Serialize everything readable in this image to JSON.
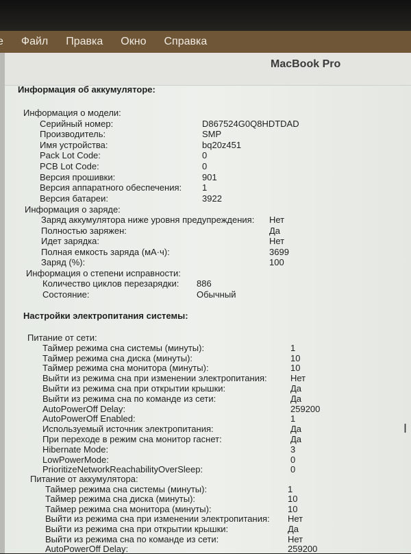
{
  "menubar": {
    "items": [
      "е",
      "Файл",
      "Правка",
      "Окно",
      "Справка"
    ]
  },
  "window": {
    "title": "MacBook Pro"
  },
  "battery": {
    "title": "Информация об аккумуляторе:",
    "model": {
      "title": "Информация о модели:",
      "rows": [
        {
          "label": "Серийный номер:",
          "value": "D867524G0Q8HDTDAD"
        },
        {
          "label": "Производитель:",
          "value": "SMP"
        },
        {
          "label": "Имя устройства:",
          "value": "bq20z451"
        },
        {
          "label": "Pack Lot Code:",
          "value": "0"
        },
        {
          "label": "PCB Lot Code:",
          "value": "0"
        },
        {
          "label": "Версия прошивки:",
          "value": "901"
        },
        {
          "label": "Версия аппаратного обеспечения:",
          "value": "1"
        },
        {
          "label": "Версия батареи:",
          "value": "3922"
        }
      ]
    },
    "charge": {
      "title": "Информация о заряде:",
      "rows": [
        {
          "label": "Заряд аккумулятора ниже уровня предупреждения:",
          "value": "Нет"
        },
        {
          "label": "Полностью заряжен:",
          "value": "Да"
        },
        {
          "label": "Идет зарядка:",
          "value": "Нет"
        },
        {
          "label": "Полная емкость заряда (мА·ч):",
          "value": "3699"
        },
        {
          "label": "Заряд (%):",
          "value": "100"
        }
      ]
    },
    "health": {
      "title": "Информация о степени исправности:",
      "rows": [
        {
          "label": "Количество циклов перезарядки:",
          "value": "886"
        },
        {
          "label": "Состояние:",
          "value": "Обычный"
        }
      ]
    }
  },
  "power": {
    "title": "Настройки электропитания системы:",
    "ac": {
      "title": "Питание от сети:",
      "rows": [
        {
          "label": "Таймер режима сна системы (минуты):",
          "value": "1"
        },
        {
          "label": "Таймер режима сна диска (минуты):",
          "value": "10"
        },
        {
          "label": "Таймер режима сна монитора (минуты):",
          "value": "10"
        },
        {
          "label": "Выйти из режима сна при изменении электропитания:",
          "value": "Нет"
        },
        {
          "label": "Выйти из режима сна при открытии крышки:",
          "value": "Да"
        },
        {
          "label": "Выйти из режима сна по команде из сети:",
          "value": "Да"
        },
        {
          "label": "AutoPowerOff Delay:",
          "value": "259200"
        },
        {
          "label": "AutoPowerOff Enabled:",
          "value": "1"
        },
        {
          "label": "Используемый источник электропитания:",
          "value": "Да"
        },
        {
          "label": "При переходе в режим сна монитор гаснет:",
          "value": "Да"
        },
        {
          "label": "Hibernate Mode:",
          "value": "3"
        },
        {
          "label": "LowPowerMode:",
          "value": "0"
        },
        {
          "label": "PrioritizeNetworkReachabilityOverSleep:",
          "value": "0"
        }
      ]
    },
    "battery": {
      "title": "Питание от аккумулятора:",
      "rows": [
        {
          "label": "Таймер режима сна системы (минуты):",
          "value": "1"
        },
        {
          "label": "Таймер режима сна диска (минуты):",
          "value": "10"
        },
        {
          "label": "Таймер режима сна монитора (минуты):",
          "value": "10"
        },
        {
          "label": "Выйти из режима сна при изменении электропитания:",
          "value": "Нет"
        },
        {
          "label": "Выйти из режима сна при открытии крышки:",
          "value": "Да"
        },
        {
          "label": "Выйти из режима сна по команде из сети:",
          "value": "Нет"
        },
        {
          "label": "AutoPowerOff Delay:",
          "value": "259200"
        }
      ]
    }
  }
}
